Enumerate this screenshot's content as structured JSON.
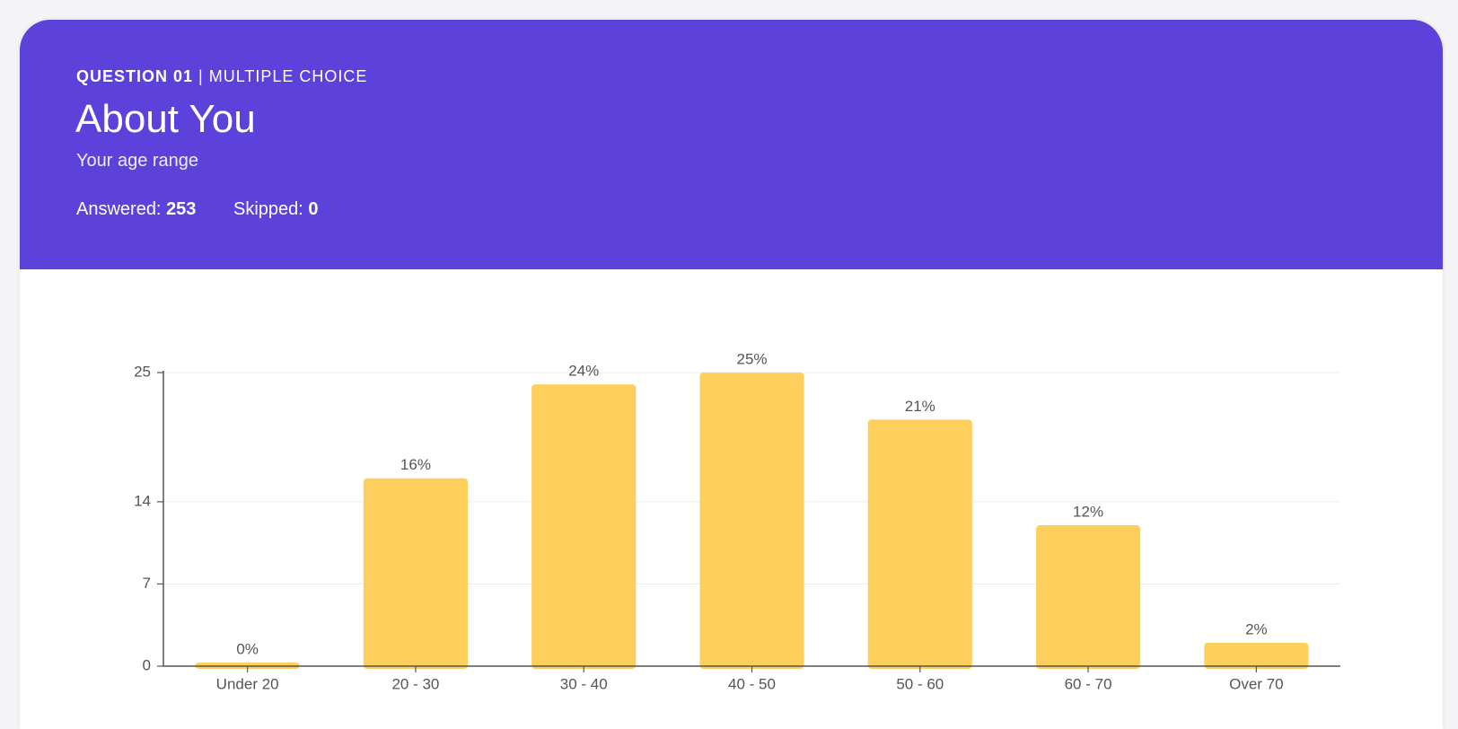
{
  "header": {
    "question": "QUESTION 01",
    "kind": "MULTIPLE CHOICE",
    "title": "About You",
    "subtitle": "Your age range",
    "answered_label": "Answered:",
    "answered": "253",
    "skipped_label": "Skipped:",
    "skipped": "0"
  },
  "chart_data": {
    "type": "bar",
    "categories": [
      "Under 20",
      "20 - 30",
      "30 - 40",
      "40 - 50",
      "50 - 60",
      "60 - 70",
      "Over 70"
    ],
    "values": [
      0,
      16,
      24,
      25,
      21,
      12,
      2
    ],
    "value_labels": [
      "0%",
      "16%",
      "24%",
      "25%",
      "21%",
      "12%",
      "2%"
    ],
    "color": "#fecf5c",
    "ylim": [
      0,
      25
    ],
    "yticks": [
      0,
      7,
      14,
      25
    ],
    "grid": true
  }
}
